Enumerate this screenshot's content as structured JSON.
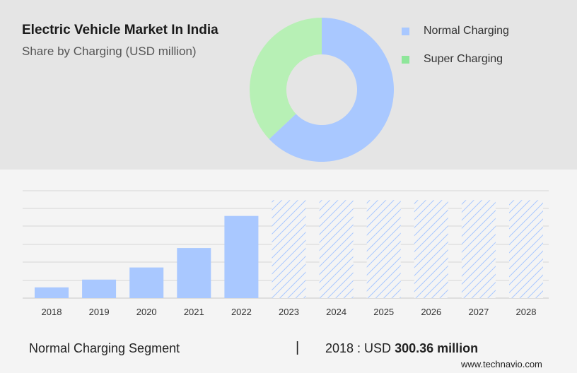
{
  "header": {
    "title": "Electric Vehicle Market In India",
    "subtitle": "Share by Charging (USD million)"
  },
  "legend": [
    {
      "label": "Normal Charging",
      "color": "#a9c8ff"
    },
    {
      "label": "Super Charging",
      "color": "#8ee69a"
    }
  ],
  "footer": {
    "segment": "Normal Charging Segment",
    "divider": "|",
    "year_prefix": "2018 : USD",
    "value_text": "300.36 million"
  },
  "brand": "www.technavio.com",
  "chart_data": [
    {
      "type": "pie",
      "donut": true,
      "labels": [
        "Normal Charging",
        "Super Charging"
      ],
      "values": [
        63,
        37
      ],
      "colors": [
        "#a9c8ff",
        "#b7f0b5"
      ]
    },
    {
      "type": "bar",
      "categories": [
        "2018",
        "2019",
        "2020",
        "2021",
        "2022",
        "2023",
        "2024",
        "2025",
        "2026",
        "2027",
        "2028"
      ],
      "values": [
        300.36,
        518,
        857,
        1401,
        2298,
        2740,
        2740,
        2740,
        2740,
        2740,
        2740
      ],
      "forecast_from": "2023",
      "bar_color": "#a9c8ff",
      "forecast_style": "hatched",
      "ylim": [
        0,
        3200
      ],
      "grid": true
    }
  ]
}
